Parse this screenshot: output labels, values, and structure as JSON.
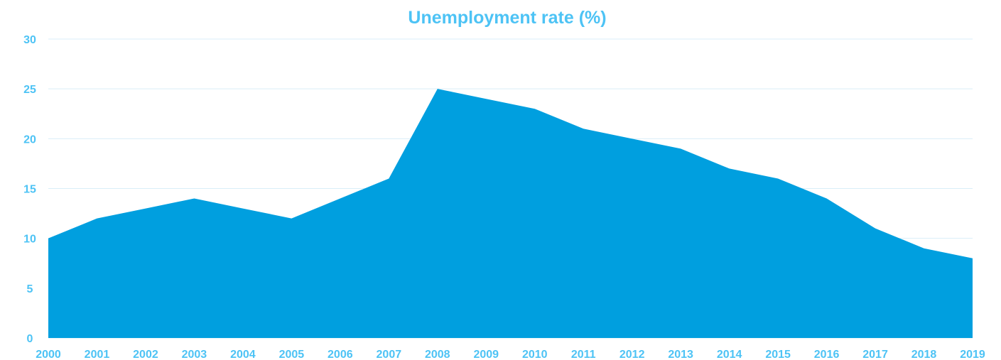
{
  "chart_data": {
    "type": "area",
    "title": "Unemployment rate (%)",
    "xlabel": "",
    "ylabel": "",
    "categories": [
      "2000",
      "2001",
      "2002",
      "2003",
      "2004",
      "2005",
      "2006",
      "2007",
      "2008",
      "2009",
      "2010",
      "2011",
      "2012",
      "2013",
      "2014",
      "2015",
      "2016",
      "2017",
      "2018",
      "2019"
    ],
    "series": [
      {
        "values": [
          10,
          12,
          13,
          14,
          13,
          12,
          14,
          16,
          25,
          24,
          23,
          21,
          20,
          19,
          17,
          16,
          14,
          11,
          9,
          8
        ]
      }
    ],
    "ylim": [
      0,
      30
    ],
    "yticks": [
      0,
      5,
      10,
      15,
      20,
      25,
      30
    ],
    "grid": "horizontal",
    "legend": "none",
    "colors": {
      "area": "#009fdf",
      "text": "#4dc3f5",
      "grid": "#d9eef8"
    }
  }
}
